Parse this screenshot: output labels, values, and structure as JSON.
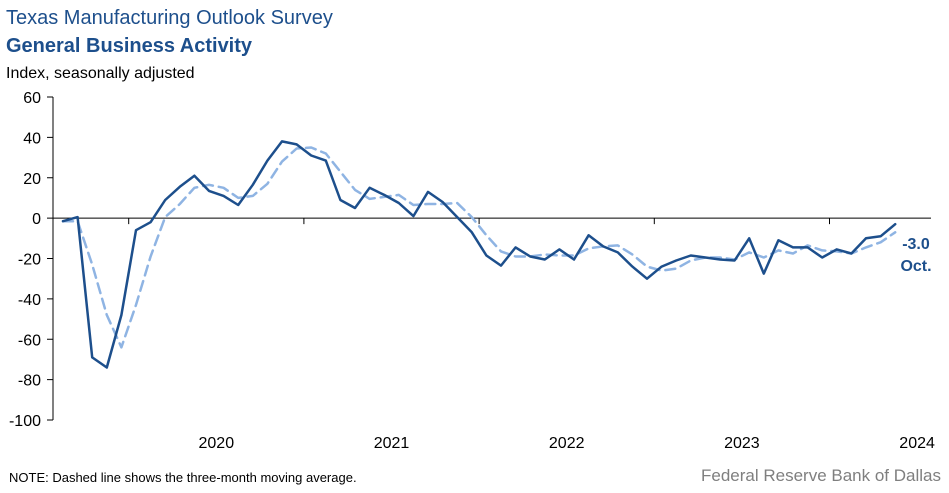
{
  "chart_data": {
    "type": "line",
    "title": "Texas Manufacturing Outlook Survey",
    "subtitle": "General Business Activity",
    "ylabel": "Index, seasonally adjusted",
    "ylim": [
      -100,
      60
    ],
    "yticks": [
      60,
      40,
      20,
      0,
      -20,
      -40,
      -60,
      -80,
      -100
    ],
    "x_tick_labels": [
      "2020",
      "2021",
      "2022",
      "2023",
      "2024"
    ],
    "x_start": "2019-08",
    "x_end": "2024-10",
    "grid": false,
    "series": [
      {
        "name": "",
        "style": "solid",
        "color": "#1d4f8c",
        "values": [
          -1.5,
          0.5,
          -69,
          -74,
          -48,
          -6,
          -2,
          9,
          15.5,
          21,
          13.5,
          11,
          6.5,
          16.5,
          28.5,
          38,
          36.5,
          31,
          28.5,
          9,
          5,
          15,
          11.5,
          7.5,
          1,
          13,
          8,
          0.5,
          -7,
          -18.5,
          -23.5,
          -14.5,
          -19,
          -20.5,
          -15.5,
          -20.5,
          -8.5,
          -14,
          -17,
          -24,
          -30,
          -24,
          -21,
          -18.5,
          -19.5,
          -20.5,
          -21,
          -10,
          -27.5,
          -11,
          -14.5,
          -14.5,
          -19.5,
          -15.5,
          -17.5,
          -10,
          -9,
          -3.0
        ]
      },
      {
        "name": "",
        "style": "dashed",
        "color": "#8fb4e3",
        "values": [
          -1.5,
          -1.5,
          -23,
          -48,
          -64,
          -43,
          -19,
          0.5,
          7,
          15,
          16.5,
          15,
          10,
          11,
          17,
          28,
          34.5,
          35,
          32,
          23,
          14,
          9.5,
          10.5,
          11.5,
          6.5,
          7,
          7,
          7.5,
          0.5,
          -8.5,
          -16.5,
          -19,
          -19,
          -18,
          -18.5,
          -18.5,
          -15,
          -14,
          -13.5,
          -18,
          -24,
          -26,
          -25,
          -21,
          -19.5,
          -19.5,
          -20.5,
          -17,
          -19.5,
          -16,
          -17.5,
          -13.5,
          -16,
          -16.5,
          -17.5,
          -14.5,
          -12,
          -7
        ]
      }
    ],
    "annotation": {
      "value": "-3.0",
      "label": "Oct."
    },
    "axis_color": "#000000"
  },
  "note": "NOTE: Dashed line shows the three-month  moving average.",
  "source": "Federal Reserve Bank of Dallas"
}
